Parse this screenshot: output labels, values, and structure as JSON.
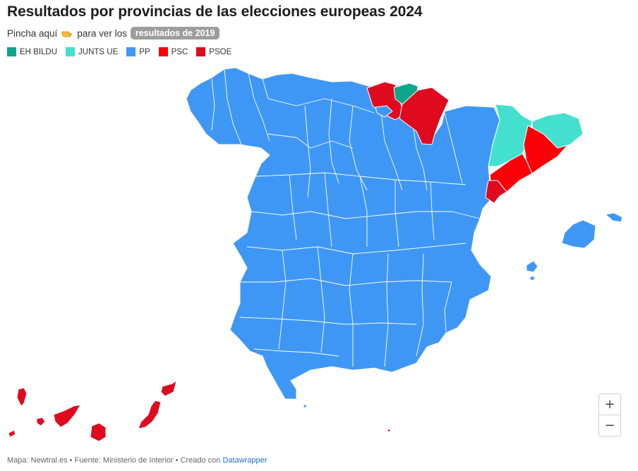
{
  "title": "Resultados por provincias de las elecciones europeas 2024",
  "subtitle": {
    "prefix": "Pincha aquí",
    "icon": "pointing-hand-icon",
    "suffix": "para ver los",
    "link_label": "resultados de 2019"
  },
  "legend": [
    {
      "label": "EH BILDU",
      "color": "#0fa58c"
    },
    {
      "label": "JUNTS UE",
      "color": "#44e0cf"
    },
    {
      "label": "PP",
      "color": "#3f97f5"
    },
    {
      "label": "PSC",
      "color": "#fb0007"
    },
    {
      "label": "PSOE",
      "color": "#df0a1e"
    }
  ],
  "map": {
    "regions": [
      {
        "party": "PP",
        "area": "Península (mayoría de provincias)"
      },
      {
        "party": "PP",
        "area": "Baleares"
      },
      {
        "party": "PSOE",
        "area": "Navarra"
      },
      {
        "party": "PSOE",
        "area": "Bizkaia / Araba"
      },
      {
        "party": "PSOE",
        "area": "Canarias"
      },
      {
        "party": "EH BILDU",
        "area": "Gipuzkoa"
      },
      {
        "party": "JUNTS UE",
        "area": "Lleida / Girona"
      },
      {
        "party": "PSC",
        "area": "Barcelona / Tarragona"
      },
      {
        "party": "PSOE",
        "area": "Castellón"
      }
    ]
  },
  "controls": {
    "zoom_in": "+",
    "zoom_out": "−"
  },
  "footer": {
    "text": "Mapa: Newtral.es • Fuente: Ministerio de Interior • Creado con",
    "link": "Datawrapper"
  }
}
